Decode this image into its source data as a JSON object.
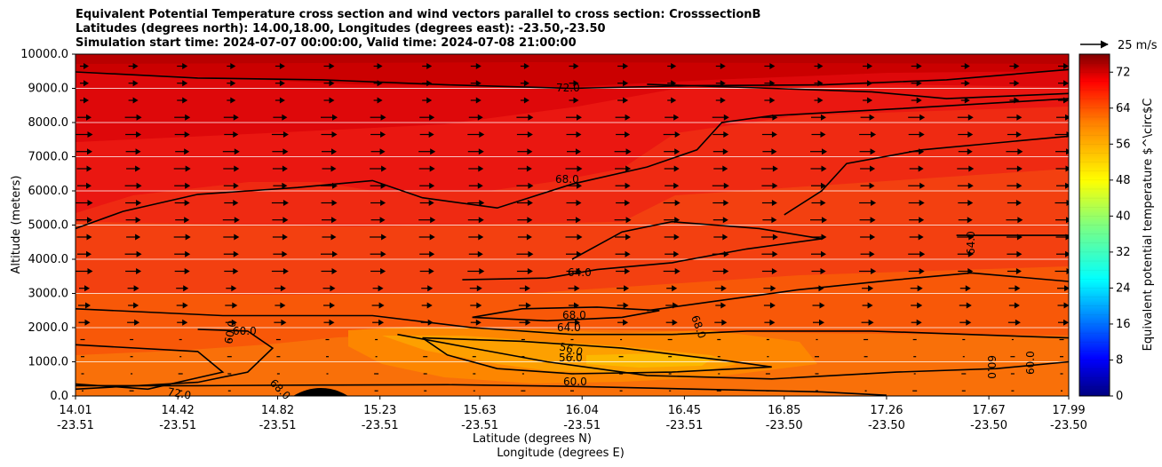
{
  "chart_data": {
    "type": "contourf",
    "title_lines": [
      "Equivalent Potential Temperature cross section and wind vectors parallel to cross section: CrosssectionB",
      "Latitudes (degrees north): 14.00,18.00, Longitudes (degrees east): -23.50,-23.50",
      "Simulation start time: 2024-07-07 00:00:00, Valid time: 2024-07-08 21:00:00"
    ],
    "ylabel": "Altitude (meters)",
    "xlabel_lat": "Latitude (degrees N)",
    "xlabel_lon": "Longitude (degrees E)",
    "ylim": [
      0,
      10000
    ],
    "yticks": [
      "0.0",
      "1000.0",
      "2000.0",
      "3000.0",
      "4000.0",
      "5000.0",
      "6000.0",
      "7000.0",
      "8000.0",
      "9000.0",
      "10000.0"
    ],
    "xlim": [
      14.01,
      17.99
    ],
    "xticks_lat": [
      "14.01",
      "14.42",
      "14.82",
      "15.23",
      "15.63",
      "16.04",
      "16.45",
      "16.85",
      "17.26",
      "17.67",
      "17.99"
    ],
    "xticks_lon": [
      "-23.51",
      "-23.51",
      "-23.51",
      "-23.51",
      "-23.51",
      "-23.51",
      "-23.51",
      "-23.50",
      "-23.50",
      "-23.50",
      "-23.50"
    ],
    "colorbar": {
      "label": "Equivalent potential temperature $^\\circ$C",
      "range": [
        0,
        76
      ],
      "ticks": [
        "0",
        "8",
        "16",
        "24",
        "32",
        "40",
        "48",
        "56",
        "64",
        "72"
      ],
      "colormap": [
        "#00007f",
        "#0000ff",
        "#007fff",
        "#00ffff",
        "#7fff7f",
        "#ffff00",
        "#ff7f00",
        "#ff0000",
        "#7f0000"
      ]
    },
    "fill_colors": {
      "c54": "#fcb800",
      "c56": "#fda000",
      "c58": "#fd8600",
      "c60": "#f97009",
      "c62": "#f85808",
      "c64": "#f34010",
      "c66": "#ef2a12",
      "c68": "#ea1711",
      "c70": "#de080a",
      "c72": "#cb0000",
      "c74": "#b90000"
    },
    "contour_labels": [
      "72.0",
      "68.0",
      "64.0",
      "64.0",
      "64.0",
      "68.0",
      "68.0",
      "60.0",
      "60.0",
      "56.0",
      "56.0",
      "60.0",
      "60.0",
      "60.0",
      "68.0",
      "72.0"
    ],
    "contour_lines": [
      {
        "level": 72,
        "points": [
          [
            14.01,
            9480
          ],
          [
            14.5,
            9300
          ],
          [
            15.0,
            9250
          ],
          [
            15.5,
            9100
          ],
          [
            16.0,
            9000
          ],
          [
            16.5,
            9080
          ],
          [
            17.0,
            9100
          ],
          [
            17.5,
            9250
          ],
          [
            17.99,
            9550
          ]
        ]
      },
      {
        "level": 72,
        "points": [
          [
            16.3,
            9120
          ],
          [
            16.8,
            9000
          ],
          [
            17.2,
            8900
          ],
          [
            17.5,
            8700
          ],
          [
            17.99,
            8850
          ]
        ]
      },
      {
        "level": 68,
        "points": [
          [
            14.01,
            4900
          ],
          [
            14.2,
            5400
          ],
          [
            14.5,
            5900
          ],
          [
            14.9,
            6100
          ],
          [
            15.2,
            6300
          ],
          [
            15.4,
            5800
          ],
          [
            15.7,
            5500
          ],
          [
            16.0,
            6200
          ],
          [
            16.3,
            6700
          ],
          [
            16.5,
            7200
          ],
          [
            16.6,
            8000
          ],
          [
            16.8,
            8200
          ],
          [
            17.3,
            8400
          ],
          [
            17.99,
            8700
          ]
        ]
      },
      {
        "level": 68,
        "points": [
          [
            16.85,
            5300
          ],
          [
            17.0,
            6000
          ],
          [
            17.1,
            6800
          ],
          [
            17.4,
            7200
          ],
          [
            17.99,
            7600
          ]
        ]
      },
      {
        "level": 64,
        "points": [
          [
            15.56,
            3400
          ],
          [
            15.9,
            3450
          ],
          [
            16.1,
            3700
          ],
          [
            16.4,
            3900
          ],
          [
            16.7,
            4300
          ],
          [
            17.0,
            4600
          ],
          [
            16.75,
            4900
          ],
          [
            16.4,
            5100
          ],
          [
            16.2,
            4800
          ],
          [
            16.0,
            4000
          ]
        ]
      },
      {
        "level": 64,
        "points": [
          [
            16.3,
            2500
          ],
          [
            16.6,
            2800
          ],
          [
            16.9,
            3100
          ],
          [
            17.3,
            3400
          ],
          [
            17.6,
            3600
          ],
          [
            17.99,
            3350
          ]
        ]
      },
      {
        "level": 64,
        "points": [
          [
            17.54,
            4700
          ],
          [
            17.99,
            4700
          ]
        ]
      },
      {
        "level": 68,
        "points": [
          [
            15.6,
            2300
          ],
          [
            15.9,
            2200
          ],
          [
            16.2,
            2300
          ],
          [
            16.35,
            2500
          ],
          [
            16.1,
            2600
          ],
          [
            15.8,
            2550
          ],
          [
            15.6,
            2300
          ]
        ]
      },
      {
        "level": 64,
        "points": [
          [
            14.01,
            2550
          ],
          [
            14.6,
            2350
          ],
          [
            15.2,
            2350
          ],
          [
            15.6,
            2000
          ],
          [
            16.0,
            1800
          ],
          [
            16.4,
            1800
          ],
          [
            16.7,
            1900
          ],
          [
            17.2,
            1900
          ],
          [
            17.99,
            1700
          ]
        ]
      },
      {
        "level": 60,
        "points": [
          [
            14.01,
            1500
          ],
          [
            14.5,
            1300
          ],
          [
            14.6,
            700
          ],
          [
            14.3,
            200
          ],
          [
            14.01,
            350
          ]
        ]
      },
      {
        "level": 60,
        "points": [
          [
            14.5,
            1950
          ],
          [
            14.7,
            1900
          ],
          [
            14.8,
            1400
          ],
          [
            14.7,
            700
          ],
          [
            14.5,
            400
          ],
          [
            14.01,
            200
          ]
        ]
      },
      {
        "level": 60,
        "points": [
          [
            15.3,
            1800
          ],
          [
            15.6,
            1400
          ],
          [
            15.9,
            1000
          ],
          [
            16.3,
            600
          ],
          [
            16.8,
            500
          ],
          [
            17.3,
            700
          ],
          [
            17.7,
            800
          ],
          [
            17.99,
            1000
          ]
        ]
      },
      {
        "level": 56,
        "points": [
          [
            15.4,
            1700
          ],
          [
            15.8,
            1600
          ],
          [
            16.2,
            1400
          ],
          [
            16.6,
            1050
          ],
          [
            16.8,
            850
          ],
          [
            16.4,
            700
          ],
          [
            16.0,
            650
          ],
          [
            15.7,
            800
          ],
          [
            15.5,
            1200
          ],
          [
            15.4,
            1700
          ]
        ]
      },
      {
        "level": 60,
        "points": [
          [
            14.01,
            300
          ],
          [
            14.5,
            300
          ],
          [
            15.0,
            320
          ],
          [
            15.5,
            330
          ],
          [
            16.0,
            280
          ],
          [
            16.5,
            200
          ],
          [
            17.0,
            120
          ],
          [
            17.26,
            20
          ]
        ]
      }
    ],
    "wind_vector_reference": "25 m/s"
  }
}
